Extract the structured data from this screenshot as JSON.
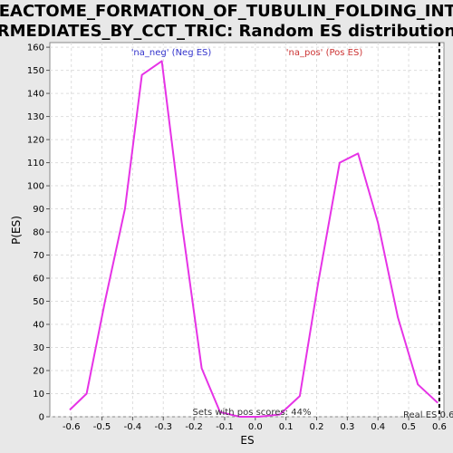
{
  "chart_data": {
    "type": "line",
    "title_lines": [
      "REACTOME_FORMATION_OF_TUBULIN_FOLDING_INTE",
      "RMEDIATES_BY_CCT_TRIC: Random ES distribution"
    ],
    "xlabel": "ES",
    "ylabel": "P(ES)",
    "xlim": [
      -0.67,
      0.615
    ],
    "ylim": [
      0,
      162
    ],
    "x_ticks": [
      -0.6,
      -0.5,
      -0.4,
      -0.3,
      -0.2,
      -0.1,
      0.0,
      0.1,
      0.2,
      0.3,
      0.4,
      0.5,
      0.6
    ],
    "x_tick_labels": [
      "-0.6",
      "-0.5",
      "-0.4",
      "-0.3",
      "-0.2",
      "-0.1",
      "0.0",
      "0.1",
      "0.2",
      "0.3",
      "0.4",
      "0.5",
      "0.6"
    ],
    "y_ticks": [
      0,
      10,
      20,
      30,
      40,
      50,
      60,
      70,
      80,
      90,
      100,
      110,
      120,
      130,
      140,
      150,
      160
    ],
    "y_tick_labels": [
      "0",
      "10",
      "20",
      "30",
      "40",
      "50",
      "60",
      "70",
      "80",
      "90",
      "100",
      "110",
      "120",
      "130",
      "140",
      "150",
      "160"
    ],
    "grid": true,
    "series": [
      {
        "name": "",
        "color": "#e633e6",
        "x": [
          -0.605,
          -0.55,
          -0.49,
          -0.425,
          -0.37,
          -0.305,
          -0.24,
          -0.175,
          -0.115,
          -0.05,
          0.01,
          0.08,
          0.145,
          0.205,
          0.275,
          0.335,
          0.4,
          0.465,
          0.53,
          0.595
        ],
        "y": [
          3,
          10,
          50,
          90,
          148,
          154,
          84,
          21,
          2,
          0,
          0,
          1,
          9,
          58,
          110,
          114,
          84,
          43,
          14,
          6
        ]
      }
    ],
    "legend": [
      {
        "text": "'na_neg' (Neg ES)",
        "color": "#3333cc"
      },
      {
        "text": "'na_pos' (Pos ES)",
        "color": "#cc3333"
      }
    ],
    "annotation_text": "Sets with pos scores: 44%",
    "real_es": {
      "value": 0.6,
      "label": "Real ES 0.6"
    }
  }
}
